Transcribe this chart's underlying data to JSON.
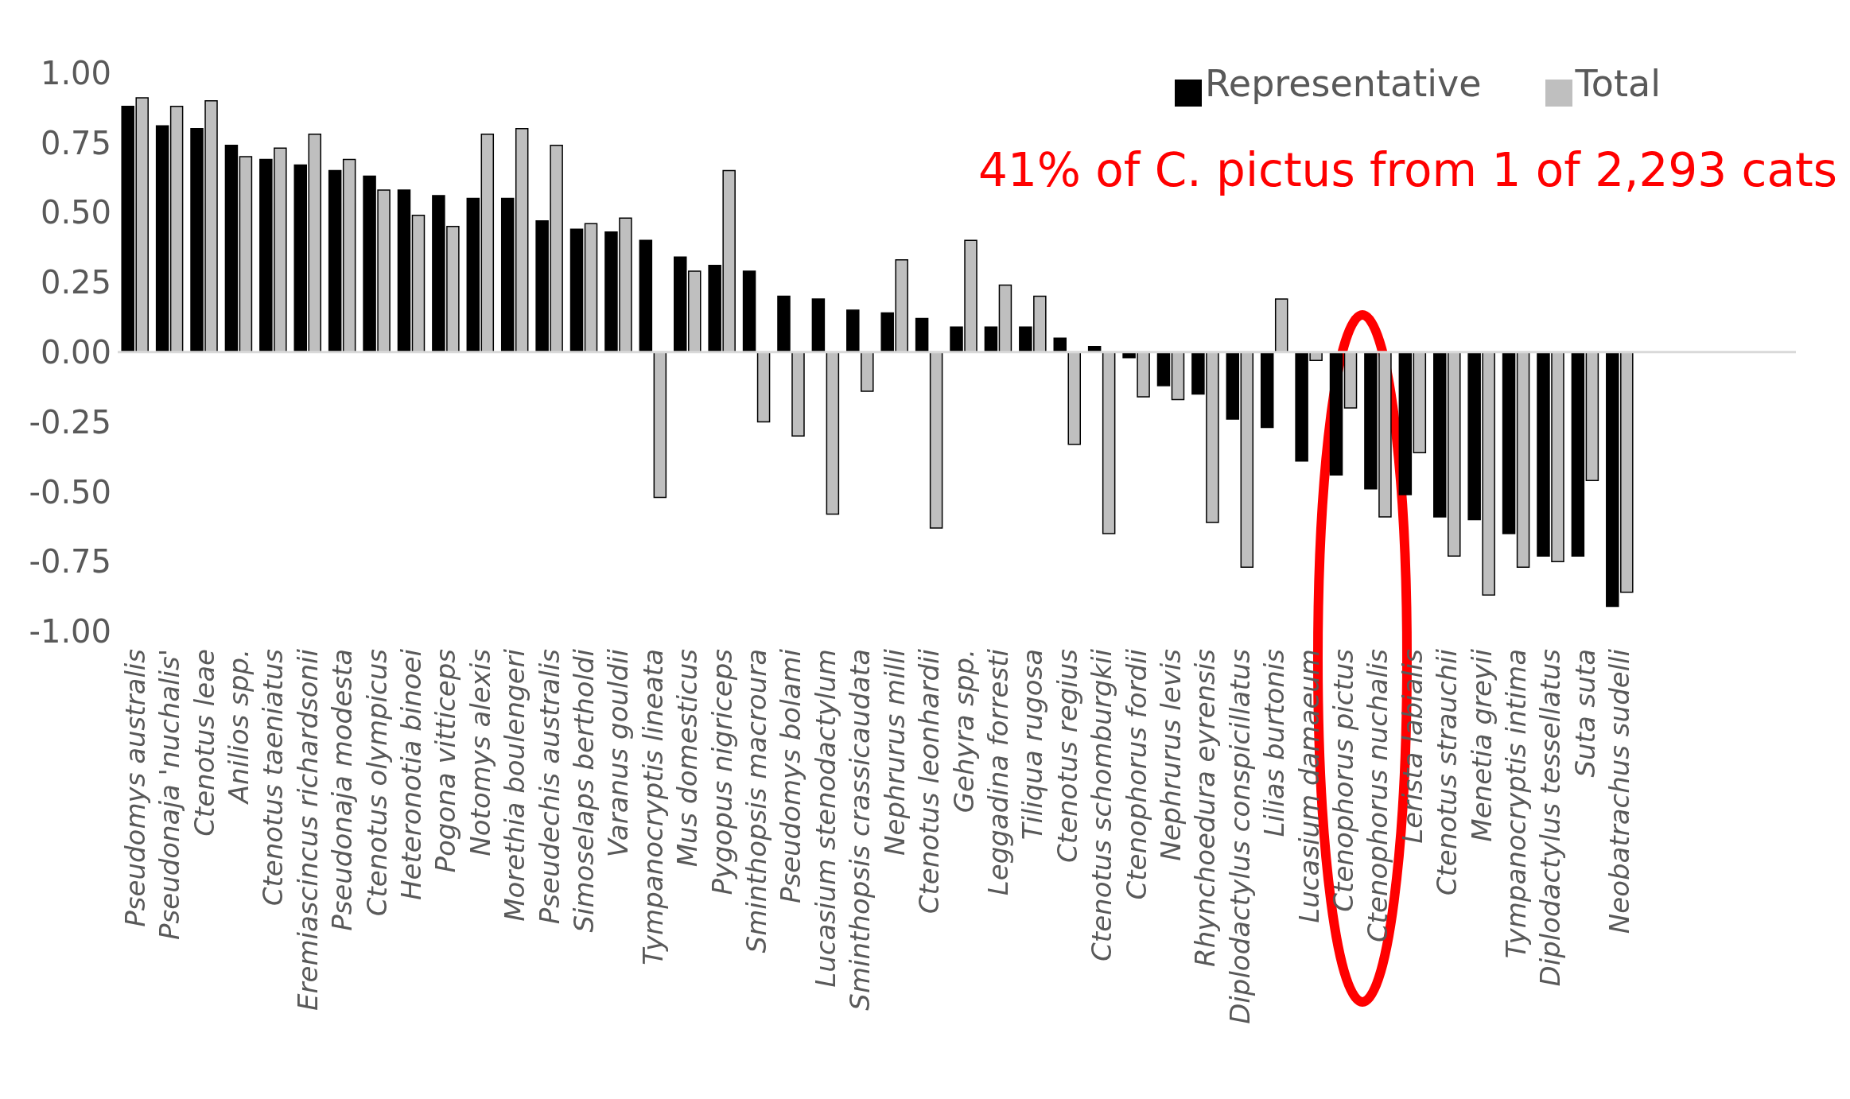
{
  "chart_data": {
    "type": "bar",
    "categories": [
      "Pseudomys australis",
      "Pseudonaja 'nuchalis'",
      "Ctenotus leae",
      "Anilios spp.",
      "Ctenotus taeniatus",
      "Eremiascincus richardsonii",
      "Pseudonaja modesta",
      "Ctenotus olympicus",
      "Heteronotia binoei",
      "Pogona vitticeps",
      "Notomys alexis",
      "Morethia boulengeri",
      "Pseudechis australis",
      "Simoselaps bertholdi",
      "Varanus gouldii",
      "Tympanocryptis lineata",
      "Mus domesticus",
      "Pygopus nigriceps",
      "Sminthopsis macroura",
      "Pseudomys bolami",
      "Lucasium stenodactylum",
      "Sminthopsis crassicaudata",
      "Nephrurus milli",
      "Ctenotus leonhardii",
      "Gehyra spp.",
      "Leggadina forresti",
      "Tiliqua rugosa",
      "Ctenotus regius",
      "Ctenotus schomburgkii",
      "Ctenophorus fordii",
      "Nephrurus levis",
      "Rhynchoedura eyrensis",
      "Diplodactylus conspicillatus",
      "Lilias burtonis",
      "Lucasium damaeum",
      "Ctenophorus pictus",
      "Ctenophorus nuchalis",
      "Lerista labialis",
      "Ctenotus strauchii",
      "Menetia greyii",
      "Tympanocryptis intima",
      "Diplodactylus tessellatus",
      "Suta suta",
      "Neobatrachus sudelli"
    ],
    "series": [
      {
        "name": "Representative",
        "color": "#000000",
        "values": [
          0.88,
          0.81,
          0.8,
          0.74,
          0.69,
          0.67,
          0.65,
          0.63,
          0.58,
          0.56,
          0.55,
          0.55,
          0.47,
          0.44,
          0.43,
          0.4,
          0.34,
          0.31,
          0.29,
          0.2,
          0.19,
          0.15,
          0.14,
          0.12,
          0.09,
          0.09,
          0.09,
          0.05,
          0.02,
          -0.02,
          -0.12,
          -0.15,
          -0.24,
          -0.27,
          -0.39,
          -0.44,
          -0.49,
          -0.51,
          -0.59,
          -0.6,
          -0.65,
          -0.73,
          -0.73,
          -0.91
        ]
      },
      {
        "name": "Total",
        "color": "#bfbfbf",
        "values": [
          0.91,
          0.88,
          0.9,
          0.7,
          0.73,
          0.78,
          0.69,
          0.58,
          0.49,
          0.45,
          0.78,
          0.8,
          0.74,
          0.46,
          0.48,
          -0.52,
          0.29,
          0.65,
          -0.25,
          -0.3,
          -0.58,
          -0.14,
          0.33,
          -0.63,
          0.4,
          0.24,
          0.2,
          -0.33,
          -0.65,
          -0.16,
          -0.17,
          -0.61,
          -0.77,
          0.19,
          -0.03,
          -0.2,
          -0.59,
          -0.36,
          -0.73,
          -0.87,
          -0.77,
          -0.75,
          -0.46,
          -0.86
        ]
      }
    ],
    "ylim": [
      -1,
      1
    ],
    "yticks": [
      {
        "value": -1,
        "label": "-1.00"
      },
      {
        "value": -0.75,
        "label": "-0.75"
      },
      {
        "value": -0.5,
        "label": "-0.50"
      },
      {
        "value": -0.25,
        "label": "-0.25"
      },
      {
        "value": 0,
        "label": "0.00"
      },
      {
        "value": 0.25,
        "label": "0.25"
      },
      {
        "value": 0.5,
        "label": "0.50"
      },
      {
        "value": 0.75,
        "label": "0.75"
      },
      {
        "value": 1,
        "label": "1.00"
      }
    ],
    "legend": "top right",
    "annotations": [
      "41% of C. pictus from 1 of 2,293 cats"
    ]
  }
}
